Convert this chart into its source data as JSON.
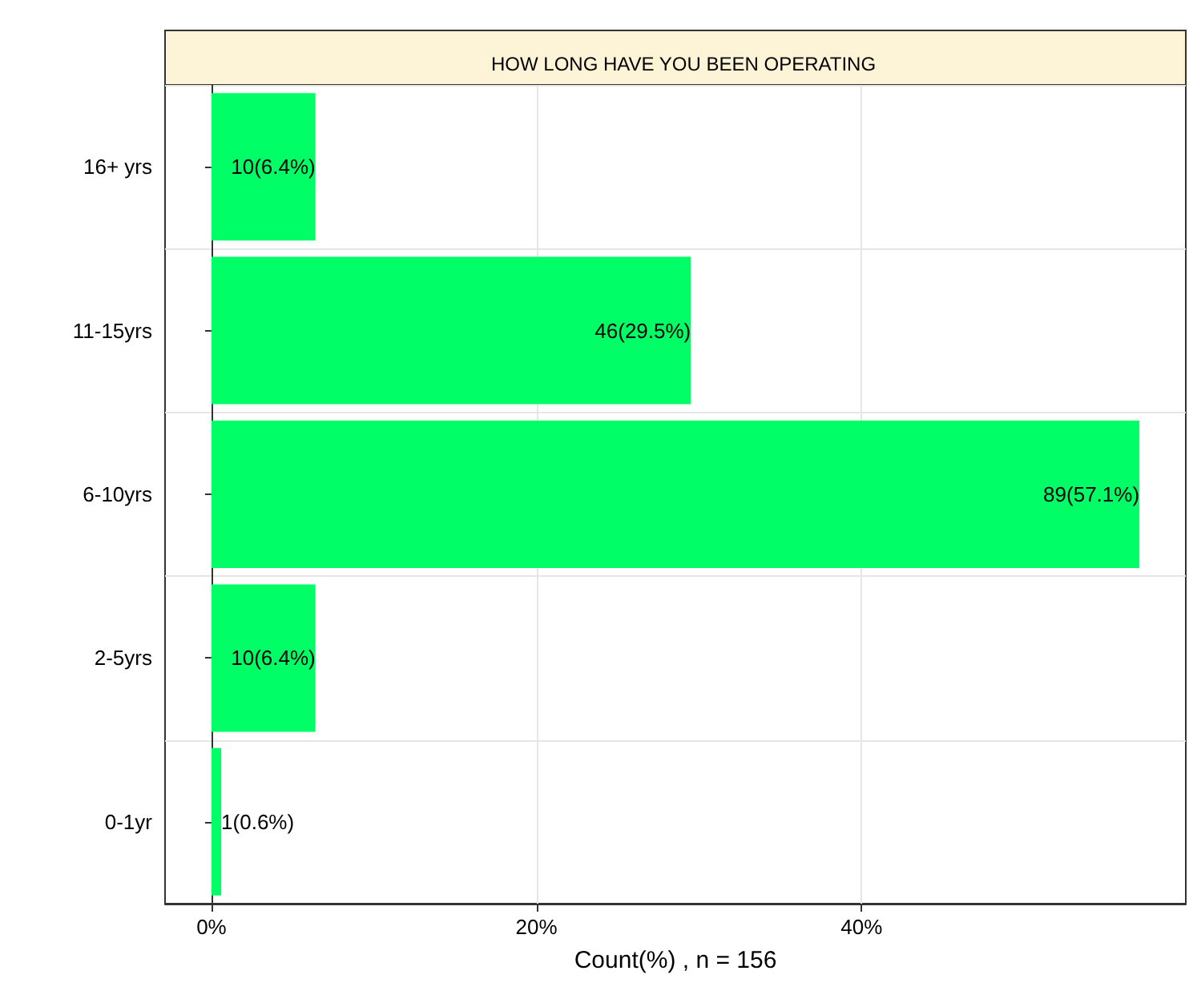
{
  "chart_data": {
    "type": "bar",
    "orientation": "horizontal",
    "title": "HOW LONG HAVE YOU BEEN OPERATING",
    "xlabel": "Count(%) , n = 156",
    "categories": [
      "16+ yrs",
      "11-15yrs",
      "6-10yrs",
      "2-5yrs",
      "0-1yr"
    ],
    "values": [
      6.4,
      29.5,
      57.1,
      6.4,
      0.6
    ],
    "value_labels": [
      "10(6.4%)",
      "46(29.5%)",
      "89(57.1%)",
      "10(6.4%)",
      "1(0.6%)"
    ],
    "color": "#00ff66",
    "xlim": [
      -2.855,
      59.955
    ],
    "xticks": [
      {
        "value": 0,
        "label": "0%"
      },
      {
        "value": 20,
        "label": "20%"
      },
      {
        "value": 40,
        "label": "40%"
      }
    ],
    "grid": true
  }
}
